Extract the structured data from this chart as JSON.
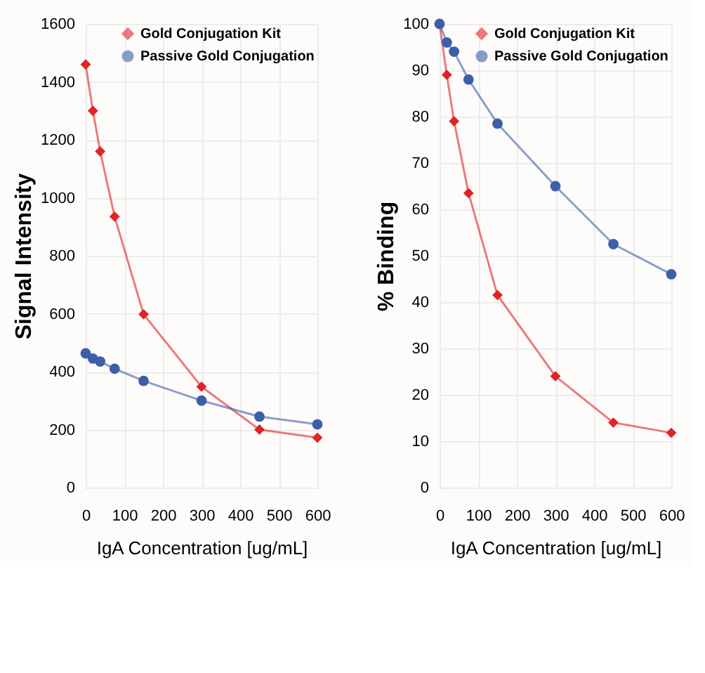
{
  "chart_data": [
    {
      "type": "line",
      "xlabel": "IgA Concentration [ug/mL]",
      "ylabel": "Signal Intensity",
      "x": [
        0,
        18.75,
        37.5,
        75,
        150,
        300,
        450,
        600
      ],
      "series": [
        {
          "name": "Gold Conjugation Kit",
          "color": "#e02424",
          "marker": "diamond",
          "values": [
            1460,
            1300,
            1160,
            935,
            598,
            348,
            200,
            172
          ]
        },
        {
          "name": "Passive Gold Conjugation",
          "color": "#3d5fa8",
          "marker": "circle",
          "values": [
            463,
            445,
            435,
            410,
            368,
            300,
            245,
            218
          ]
        }
      ],
      "xlim": [
        0,
        600
      ],
      "xticks": [
        0,
        100,
        200,
        300,
        400,
        500,
        600
      ],
      "ylim": [
        0,
        1600
      ],
      "yticks": [
        0,
        200,
        400,
        600,
        800,
        1000,
        1200,
        1400,
        1600
      ],
      "grid": true,
      "legend": "top right"
    },
    {
      "type": "line",
      "xlabel": "IgA Concentration [ug/mL]",
      "ylabel": "% Binding",
      "x": [
        0,
        18.75,
        37.5,
        75,
        150,
        300,
        450,
        600
      ],
      "series": [
        {
          "name": "Gold Conjugation Kit",
          "color": "#e02424",
          "marker": "diamond",
          "values": [
            100,
            89,
            79,
            63.5,
            41.5,
            24,
            14,
            11.8
          ]
        },
        {
          "name": "Passive Gold Conjugation",
          "color": "#3d5fa8",
          "marker": "circle",
          "values": [
            100,
            96,
            94,
            88,
            78.5,
            65,
            52.5,
            46
          ]
        }
      ],
      "xlim": [
        0,
        600
      ],
      "xticks": [
        0,
        100,
        200,
        300,
        400,
        500,
        600
      ],
      "ylim": [
        0,
        100
      ],
      "yticks": [
        0,
        10,
        20,
        30,
        40,
        50,
        60,
        70,
        80,
        90,
        100
      ],
      "grid": true,
      "legend": "top right"
    }
  ]
}
